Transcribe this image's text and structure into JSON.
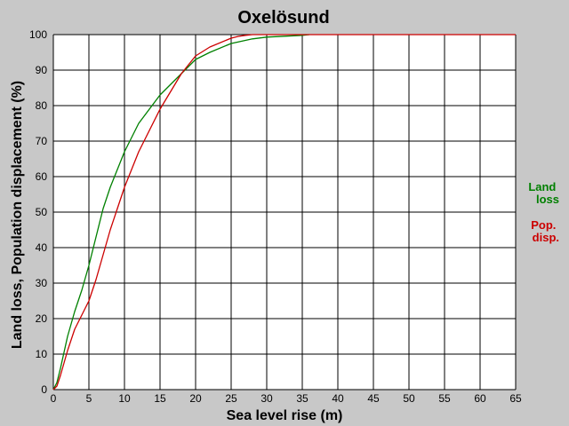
{
  "chart_data": {
    "type": "line",
    "title": "Oxelösund",
    "xlabel": "Sea level rise (m)",
    "ylabel": "Land loss, Population displacement (%)",
    "xlim": [
      0,
      65
    ],
    "ylim": [
      0,
      100
    ],
    "x_ticks": [
      "0",
      "5",
      "10",
      "15",
      "20",
      "25",
      "30",
      "35",
      "40",
      "45",
      "50",
      "55",
      "60",
      "65"
    ],
    "y_ticks": [
      "0",
      "10",
      "20",
      "30",
      "40",
      "50",
      "60",
      "70",
      "80",
      "90",
      "100"
    ],
    "grid": true,
    "legend_position": "right",
    "legend": [
      {
        "lines": [
          "Land",
          "loss"
        ],
        "color": "#008000"
      },
      {
        "lines": [
          "Pop.",
          "disp."
        ],
        "color": "#cc0000"
      }
    ],
    "series": [
      {
        "name": "Land loss",
        "color": "#008000",
        "x": [
          0,
          0.5,
          1,
          2,
          3,
          4,
          5,
          6,
          7,
          8,
          9,
          10,
          12,
          15,
          18,
          20,
          22,
          25,
          28,
          30,
          35,
          36
        ],
        "y": [
          0,
          2,
          6,
          15,
          22,
          28,
          35,
          43,
          51,
          57,
          62,
          67,
          75,
          83,
          89,
          93,
          95,
          97.5,
          98.8,
          99.3,
          99.8,
          100
        ]
      },
      {
        "name": "Pop. disp.",
        "color": "#cc0000",
        "x": [
          0,
          0.5,
          1,
          2,
          3,
          4,
          5,
          6,
          7,
          8,
          9,
          10,
          12,
          15,
          18,
          20,
          22,
          25,
          26,
          27,
          28,
          30,
          65
        ],
        "y": [
          0,
          1,
          4,
          11,
          17,
          21,
          25,
          31,
          38,
          45,
          51,
          57,
          67,
          79,
          89,
          94,
          96.5,
          99,
          99.5,
          99.8,
          100,
          100,
          100
        ]
      }
    ]
  }
}
